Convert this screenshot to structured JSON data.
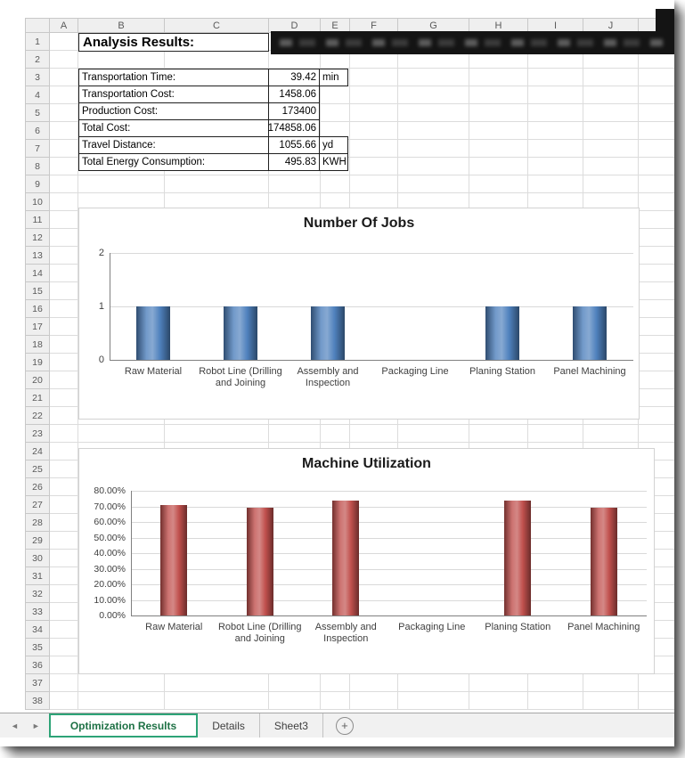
{
  "sheet": {
    "columns": [
      "A",
      "B",
      "C",
      "D",
      "E",
      "F",
      "G",
      "H",
      "I",
      "J"
    ],
    "row_count": 38,
    "title_cell": "Analysis Results:"
  },
  "results_table": {
    "rows": [
      {
        "label": "Transportation Time:",
        "value": "39.42",
        "unit": "min"
      },
      {
        "label": "Transportation Cost:",
        "value": "1458.06",
        "unit": ""
      },
      {
        "label": "Production Cost:",
        "value": "173400",
        "unit": ""
      },
      {
        "label": "Total Cost:",
        "value": "174858.06",
        "unit": ""
      },
      {
        "label": "Travel Distance:",
        "value": "1055.66",
        "unit": "yd"
      },
      {
        "label": "Total Energy Consumption:",
        "value": "495.83",
        "unit": "KWH"
      }
    ]
  },
  "chart_data": [
    {
      "type": "bar",
      "title": "Number Of Jobs",
      "categories": [
        "Raw Material",
        "Robot Line (Drilling and Joining",
        "Assembly and Inspection",
        "Packaging Line",
        "Planing Station",
        "Panel Machining"
      ],
      "values": [
        1,
        1,
        1,
        0,
        1,
        1
      ],
      "xlabel": "",
      "ylabel": "",
      "ylim": [
        0,
        2
      ],
      "yticks": [
        0,
        1,
        2
      ],
      "ytick_labels": [
        "0",
        "1",
        "2"
      ],
      "grid": true,
      "legend": false,
      "bar_color": "#4f81bd"
    },
    {
      "type": "bar",
      "title": "Machine Utilization",
      "categories": [
        "Raw Material",
        "Robot Line (Drilling and Joining",
        "Assembly and Inspection",
        "Packaging Line",
        "Planing Station",
        "Panel Machining"
      ],
      "values": [
        71,
        69,
        74,
        0,
        74,
        69
      ],
      "xlabel": "",
      "ylabel": "",
      "value_unit": "percent",
      "ylim": [
        0,
        80
      ],
      "yticks": [
        0,
        10,
        20,
        30,
        40,
        50,
        60,
        70,
        80
      ],
      "ytick_labels": [
        "0.00%",
        "10.00%",
        "20.00%",
        "30.00%",
        "40.00%",
        "50.00%",
        "60.00%",
        "70.00%",
        "80.00%"
      ],
      "grid": true,
      "legend": false,
      "bar_color": "#c0504d"
    }
  ],
  "tab_bar": {
    "tabs": [
      {
        "label": "Optimization Results",
        "active": true
      },
      {
        "label": "Details",
        "active": false
      },
      {
        "label": "Sheet3",
        "active": false
      }
    ],
    "new_sheet_label": "+"
  },
  "icons": {
    "tab_scroll_left": "◄",
    "tab_scroll_right": "►"
  },
  "colors": {
    "active_tab_text": "#1e7145",
    "active_tab_border": "#2da377",
    "jobs_bar": "#4f81bd",
    "utilization_bar": "#c0504d",
    "gridline": "#dcdcdc"
  }
}
